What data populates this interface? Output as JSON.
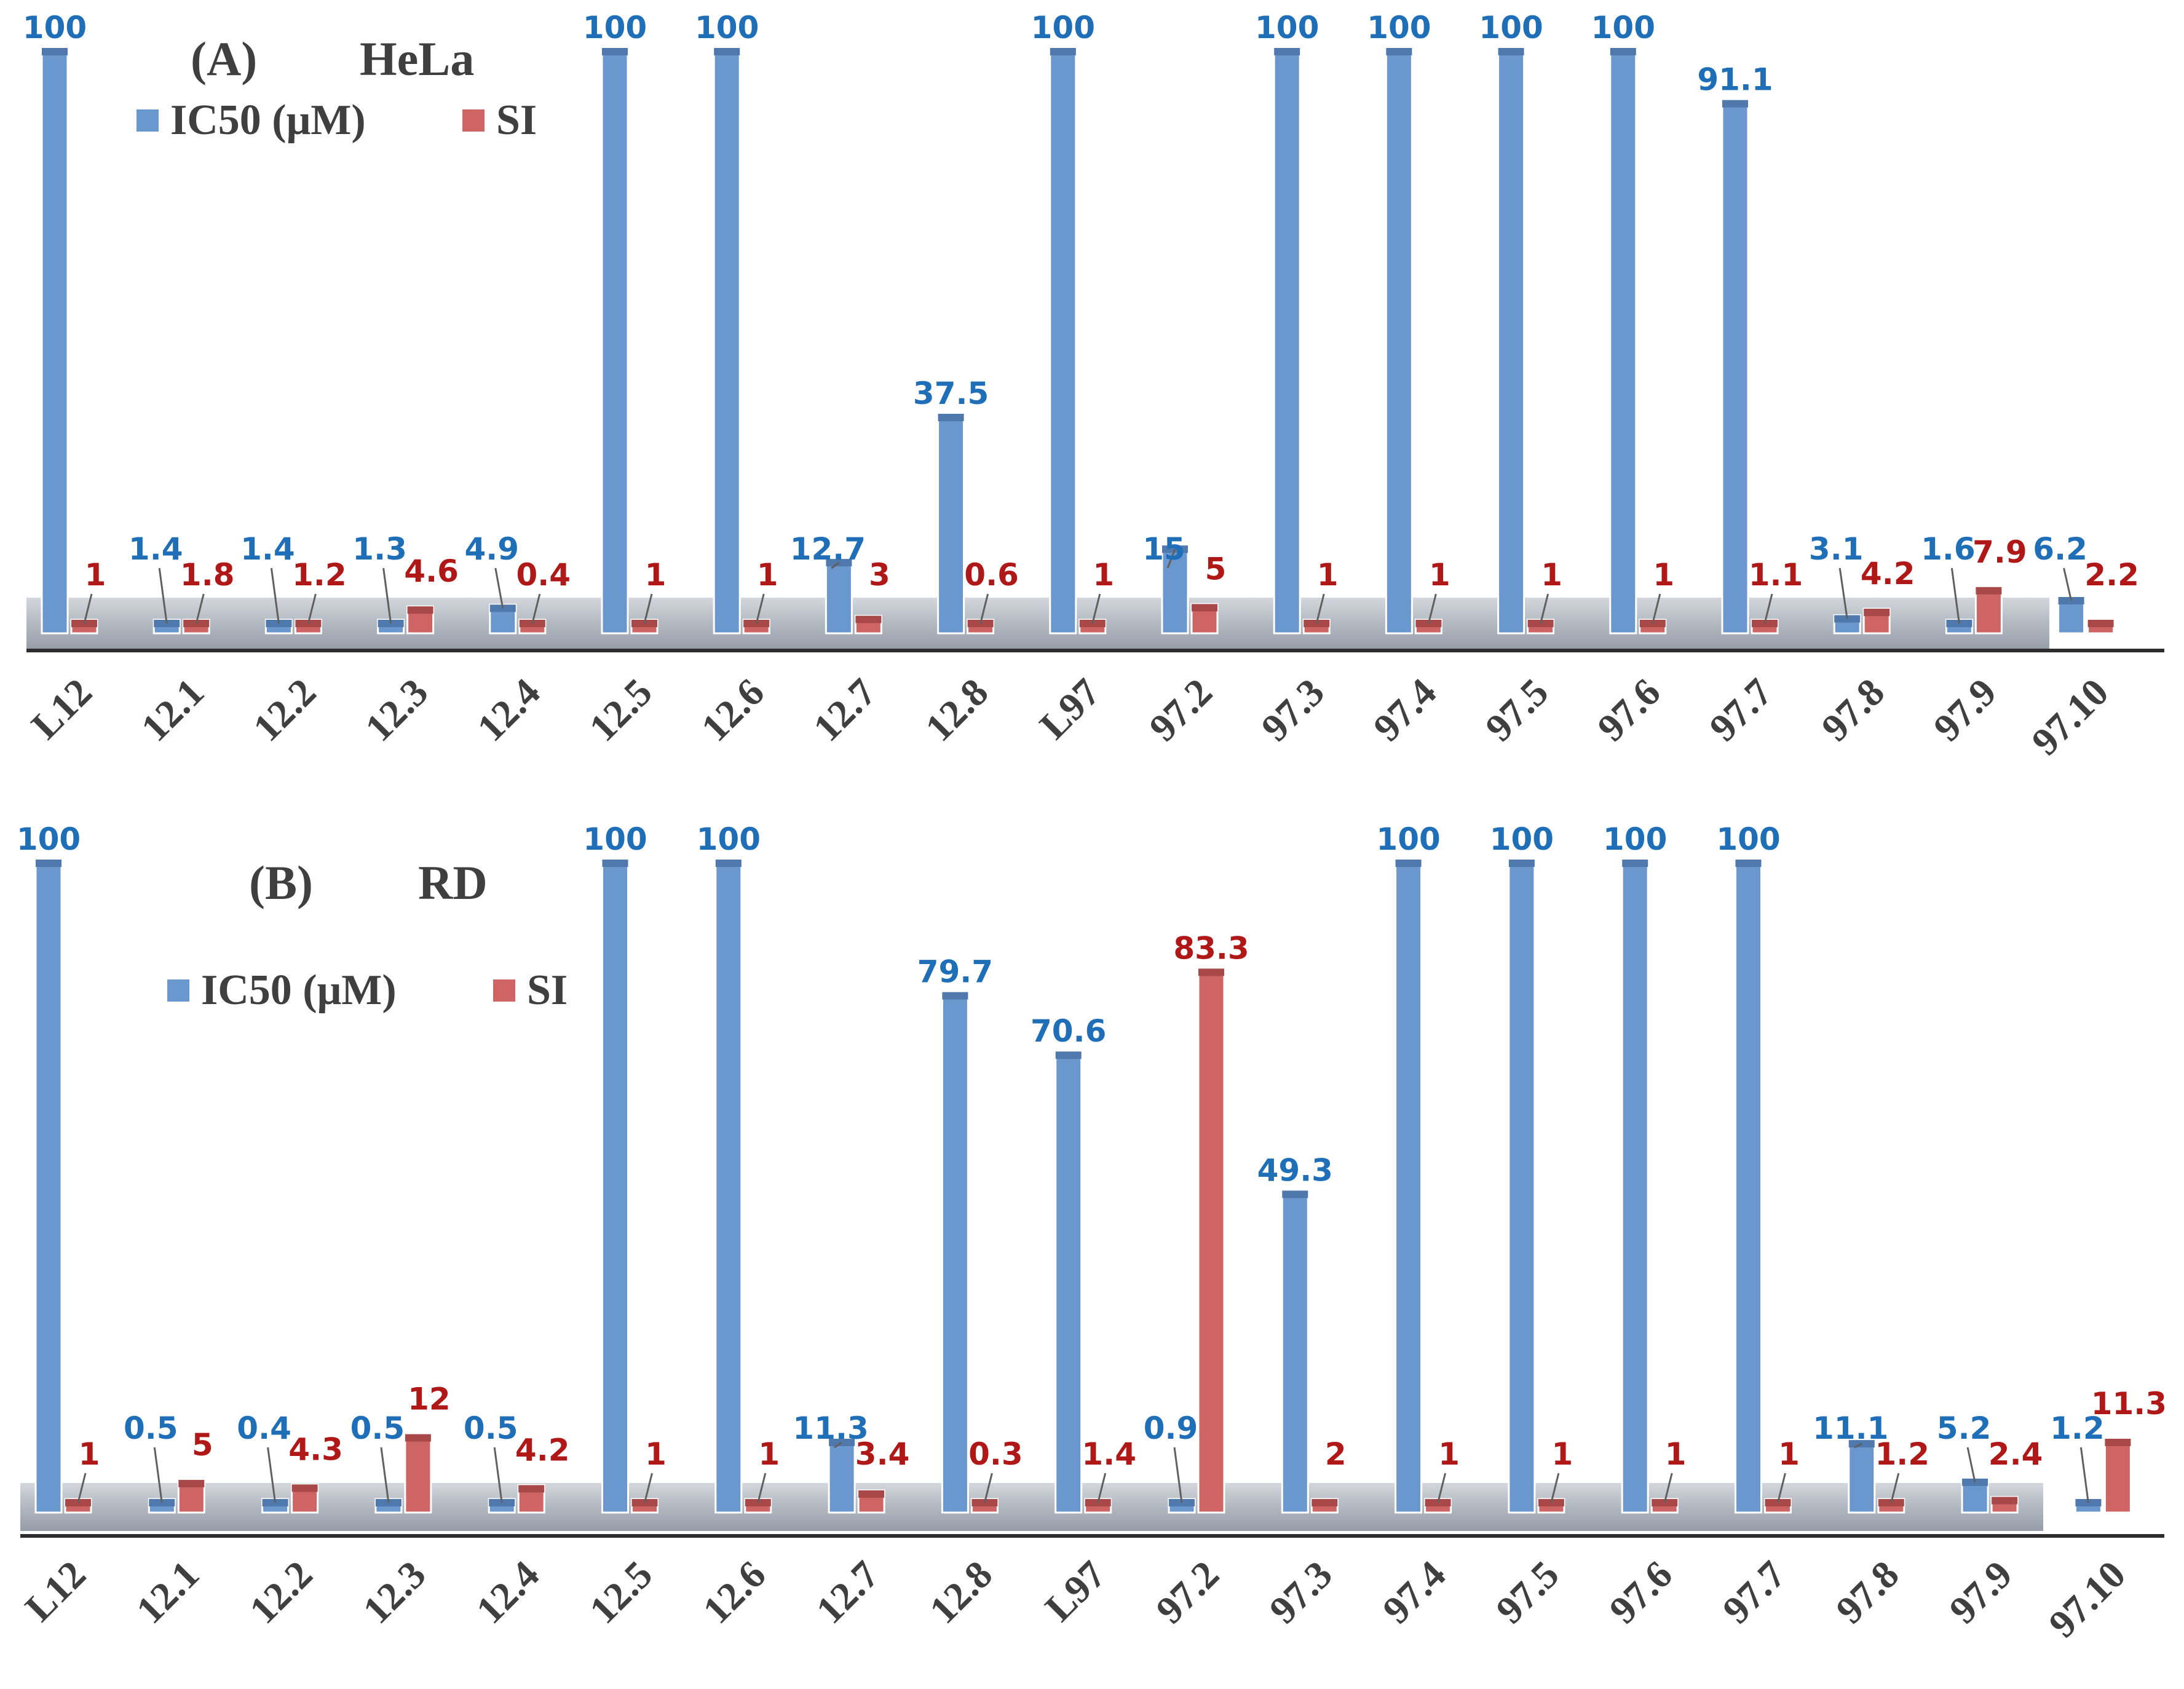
{
  "colors": {
    "ic50": "#6b97cf",
    "ic50_dark": "#4f78ad",
    "si": "#cf6464",
    "si_dark": "#a84848",
    "ic50_label": "#1f6fb8",
    "si_label": "#b01818",
    "text": "#3f3f3f",
    "floor": "#a6adb6"
  },
  "chart_data": [
    {
      "type": "bar",
      "panel": "(A)",
      "title": "HeLa",
      "categories": [
        "L12",
        "12.1",
        "12.2",
        "12.3",
        "12.4",
        "12.5",
        "12.6",
        "12.7",
        "12.8",
        "L97",
        "97.2",
        "97.3",
        "97.4",
        "97.5",
        "97.6",
        "97.7",
        "97.8",
        "97.9",
        "97.10"
      ],
      "series": [
        {
          "name": "IC50  (μM)",
          "values": [
            100,
            1.4,
            1.4,
            1.3,
            4.9,
            100,
            100,
            12.7,
            37.5,
            100,
            15,
            100,
            100,
            100,
            100,
            91.1,
            3.1,
            1.6,
            6.2
          ]
        },
        {
          "name": "SI",
          "values": [
            1,
            1.8,
            1.2,
            4.6,
            0.4,
            1,
            1,
            3,
            0.6,
            1,
            5,
            1,
            1,
            1,
            1,
            1.1,
            4.2,
            7.9,
            2.2
          ]
        }
      ],
      "value_labels": {
        "ic50": [
          "100",
          "1.4",
          "1.4",
          "1.3",
          "4.9",
          "100",
          "100",
          "12.7",
          "37.5",
          "100",
          "15",
          "100",
          "100",
          "100",
          "100",
          "91.1",
          "3.1",
          "1.6",
          "6.2"
        ],
        "si": [
          "1",
          "1.8",
          "1.2",
          "4.6",
          "0.4",
          "1",
          "1",
          "3",
          "0.6",
          "1",
          "5",
          "1",
          "1",
          "1",
          "1",
          "1.1",
          "4.2",
          "7.9",
          "2.2"
        ]
      },
      "ylim": [
        0,
        100
      ],
      "grid": false,
      "legend": "top-left"
    },
    {
      "type": "bar",
      "panel": "(B)",
      "title": "RD",
      "categories": [
        "L12",
        "12.1",
        "12.2",
        "12.3",
        "12.4",
        "12.5",
        "12.6",
        "12.7",
        "12.8",
        "L97",
        "97.2",
        "97.3",
        "97.4",
        "97.5",
        "97.6",
        "97.7",
        "97.8",
        "97.9",
        "97.10"
      ],
      "series": [
        {
          "name": "IC50  (μM)",
          "values": [
            100,
            0.5,
            0.4,
            0.5,
            0.5,
            100,
            100,
            11.3,
            79.7,
            70.6,
            0.9,
            49.3,
            100,
            100,
            100,
            100,
            11.1,
            5.2,
            1.2
          ]
        },
        {
          "name": "SI",
          "values": [
            1,
            5,
            4.3,
            12,
            4.2,
            1,
            1,
            3.4,
            0.3,
            1.4,
            83.3,
            2,
            1,
            1,
            1,
            1,
            1.2,
            2.4,
            11.3
          ]
        }
      ],
      "value_labels": {
        "ic50": [
          "100",
          "0.5",
          "0.4",
          "0.5",
          "0.5",
          "100",
          "100",
          "11.3",
          "79.7",
          "70.6",
          "0.9",
          "49.3",
          "100",
          "100",
          "100",
          "100",
          "11.1",
          "5.2",
          "1.2"
        ],
        "si": [
          "1",
          "5",
          "4.3",
          "12",
          "4.2",
          "1",
          "1",
          "3.4",
          "0.3",
          "1.4",
          "83.3",
          "2",
          "1",
          "1",
          "1",
          "1",
          "1.2",
          "2.4",
          "11.3"
        ]
      },
      "ylim": [
        0,
        100
      ],
      "grid": false,
      "legend": "top-left"
    }
  ]
}
